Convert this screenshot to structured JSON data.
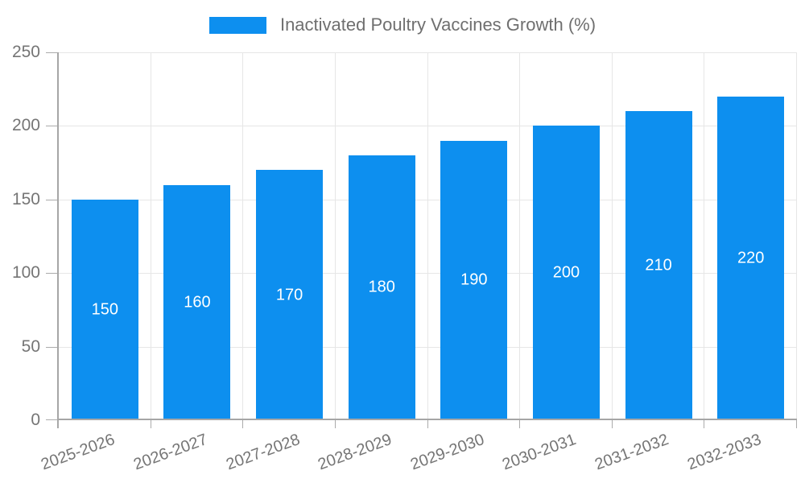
{
  "legend": {
    "label": "Inactivated Poultry Vaccines Growth (%)"
  },
  "chart_data": {
    "type": "bar",
    "title": "",
    "xlabel": "",
    "ylabel": "",
    "categories": [
      "2025-2026",
      "2026-2027",
      "2027-2028",
      "2028-2029",
      "2029-2030",
      "2030-2031",
      "2031-2032",
      "2032-2033"
    ],
    "series": [
      {
        "name": "Inactivated Poultry Vaccines Growth (%)",
        "values": [
          150,
          160,
          170,
          180,
          190,
          200,
          210,
          220
        ]
      }
    ],
    "bar_value_labels": [
      "150",
      "160",
      "170",
      "180",
      "190",
      "200",
      "210",
      "220"
    ],
    "ylim": [
      0,
      250
    ],
    "yticks": [
      0,
      50,
      100,
      150,
      200,
      250
    ],
    "grid": true,
    "legend_position": "top"
  },
  "colors": {
    "bar": "#0D8FEF",
    "bar_label": "#FFFFFF",
    "gridline": "#E6E6E6",
    "axis": "#A6A6A6",
    "tick_mark": "#ABABAB",
    "tick_text": "#757575",
    "legend_text": "#6F6F6F",
    "background": "#FFFFFF"
  }
}
